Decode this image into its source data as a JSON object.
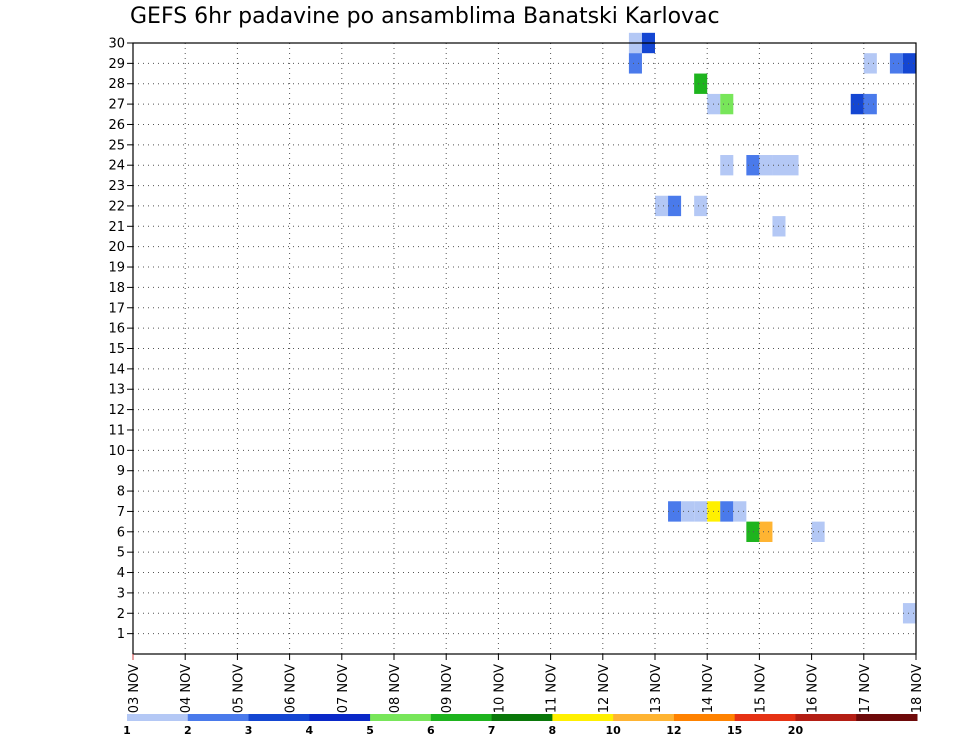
{
  "title": "GEFS 6hr padavine po ansamblima Banatski Karlovac",
  "chart_data": {
    "type": "heatmap",
    "title": "GEFS 6hr padavine po ansamblima Banatski Karlovac",
    "xlabel": "",
    "ylabel": "",
    "x_tick_labels": [
      "03 NOV",
      "04 NOV",
      "05 NOV",
      "06 NOV",
      "07 NOV",
      "08 NOV",
      "09 NOV",
      "10 NOV",
      "11 NOV",
      "12 NOV",
      "13 NOV",
      "14 NOV",
      "15 NOV",
      "16 NOV",
      "17 NOV",
      "18 NOV"
    ],
    "xlim": [
      0,
      15
    ],
    "y_ticks": [
      1,
      2,
      3,
      4,
      5,
      6,
      7,
      8,
      9,
      10,
      11,
      12,
      13,
      14,
      15,
      16,
      17,
      18,
      19,
      20,
      21,
      22,
      23,
      24,
      25,
      26,
      27,
      28,
      29,
      30
    ],
    "ylim": [
      0,
      30
    ],
    "grid": true,
    "legend_levels": [
      "1",
      "2",
      "3",
      "4",
      "5",
      "6",
      "7",
      "8",
      "10",
      "12",
      "15",
      "20"
    ],
    "legend_colors": [
      "#b4c8f5",
      "#4a7aeb",
      "#1446d2",
      "#0a28c8",
      "#78e65a",
      "#1eb41e",
      "#0a780a",
      "#fff000",
      "#ffb432",
      "#ff8200",
      "#e63214",
      "#b41e14",
      "#6e0a0a"
    ],
    "cells": [
      {
        "day": 9.625,
        "member": 30,
        "color": "#b4c8f5"
      },
      {
        "day": 9.875,
        "member": 30,
        "color": "#1446d2"
      },
      {
        "day": 9.625,
        "member": 29,
        "color": "#4a7aeb"
      },
      {
        "day": 14.125,
        "member": 29,
        "color": "#b4c8f5"
      },
      {
        "day": 14.625,
        "member": 29,
        "color": "#4a7aeb"
      },
      {
        "day": 14.875,
        "member": 29,
        "color": "#1446d2"
      },
      {
        "day": 10.875,
        "member": 28,
        "color": "#1eb41e"
      },
      {
        "day": 11.125,
        "member": 27,
        "color": "#b4c8f5"
      },
      {
        "day": 11.375,
        "member": 27,
        "color": "#78e65a"
      },
      {
        "day": 13.875,
        "member": 27,
        "color": "#1446d2"
      },
      {
        "day": 14.125,
        "member": 27,
        "color": "#4a7aeb"
      },
      {
        "day": 11.375,
        "member": 24,
        "color": "#b4c8f5"
      },
      {
        "day": 11.875,
        "member": 24,
        "color": "#4a7aeb"
      },
      {
        "day": 12.125,
        "member": 24,
        "color": "#b4c8f5"
      },
      {
        "day": 12.375,
        "member": 24,
        "color": "#b4c8f5"
      },
      {
        "day": 12.625,
        "member": 24,
        "color": "#b4c8f5"
      },
      {
        "day": 10.125,
        "member": 22,
        "color": "#b4c8f5"
      },
      {
        "day": 10.375,
        "member": 22,
        "color": "#4a7aeb"
      },
      {
        "day": 10.875,
        "member": 22,
        "color": "#b4c8f5"
      },
      {
        "day": 12.375,
        "member": 21,
        "color": "#b4c8f5"
      },
      {
        "day": 10.375,
        "member": 7,
        "color": "#4a7aeb"
      },
      {
        "day": 10.625,
        "member": 7,
        "color": "#b4c8f5"
      },
      {
        "day": 10.875,
        "member": 7,
        "color": "#b4c8f5"
      },
      {
        "day": 11.125,
        "member": 7,
        "color": "#fff000"
      },
      {
        "day": 11.375,
        "member": 7,
        "color": "#4a7aeb"
      },
      {
        "day": 11.625,
        "member": 7,
        "color": "#b4c8f5"
      },
      {
        "day": 11.875,
        "member": 6,
        "color": "#1eb41e"
      },
      {
        "day": 12.125,
        "member": 6,
        "color": "#ffb432"
      },
      {
        "day": 13.125,
        "member": 6,
        "color": "#b4c8f5"
      },
      {
        "day": 14.875,
        "member": 2,
        "color": "#b4c8f5"
      }
    ]
  }
}
